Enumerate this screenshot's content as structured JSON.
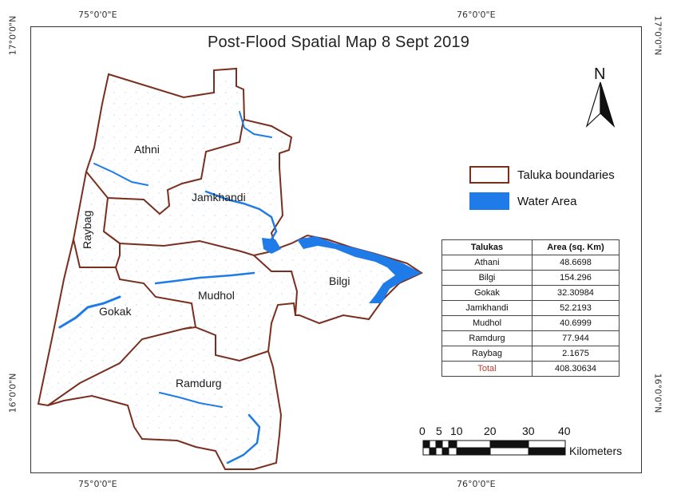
{
  "title": "Post-Flood Spatial Map 8 Sept 2019",
  "coords": {
    "top_left": "75°0'0\"E",
    "top_right": "76°0'0\"E",
    "bottom_left": "75°0'0\"E",
    "bottom_right": "76°0'0\"E",
    "left_top": "17°0'0\"N",
    "left_bottom": "16°0'0\"N",
    "right_top": "17°0'0\"N",
    "right_bottom": "16°0'0\"N"
  },
  "north_arrow": {
    "label": "N",
    "icon": "north-arrow-icon"
  },
  "talukas": {
    "athni": "Athni",
    "jamkhandi": "Jamkhandi",
    "raybag": "Raybag",
    "bilgi": "Bilgi",
    "mudhol": "Mudhol",
    "gokak": "Gokak",
    "ramdurg": "Ramdurg"
  },
  "legend": {
    "boundaries_label": "Taluka boundaries",
    "water_label": "Water Area",
    "boundary_color": "#7a2e1e",
    "water_color": "#1e7be8"
  },
  "table": {
    "header_taluka": "Talukas",
    "header_area": "Area (sq. Km)",
    "rows": [
      {
        "name": "Athani",
        "area": "48.6698"
      },
      {
        "name": "Bilgi",
        "area": "154.296"
      },
      {
        "name": "Gokak",
        "area": "32.30984"
      },
      {
        "name": "Jamkhandi",
        "area": "52.2193"
      },
      {
        "name": "Mudhol",
        "area": "40.6999"
      },
      {
        "name": "Ramdurg",
        "area": "77.944"
      },
      {
        "name": "Raybag",
        "area": "2.1675"
      }
    ],
    "total_label": "Total",
    "total_value": "408.30634"
  },
  "scale_bar": {
    "ticks": [
      "0",
      "5",
      "10",
      "20",
      "30",
      "40"
    ],
    "unit": "Kilometers"
  }
}
